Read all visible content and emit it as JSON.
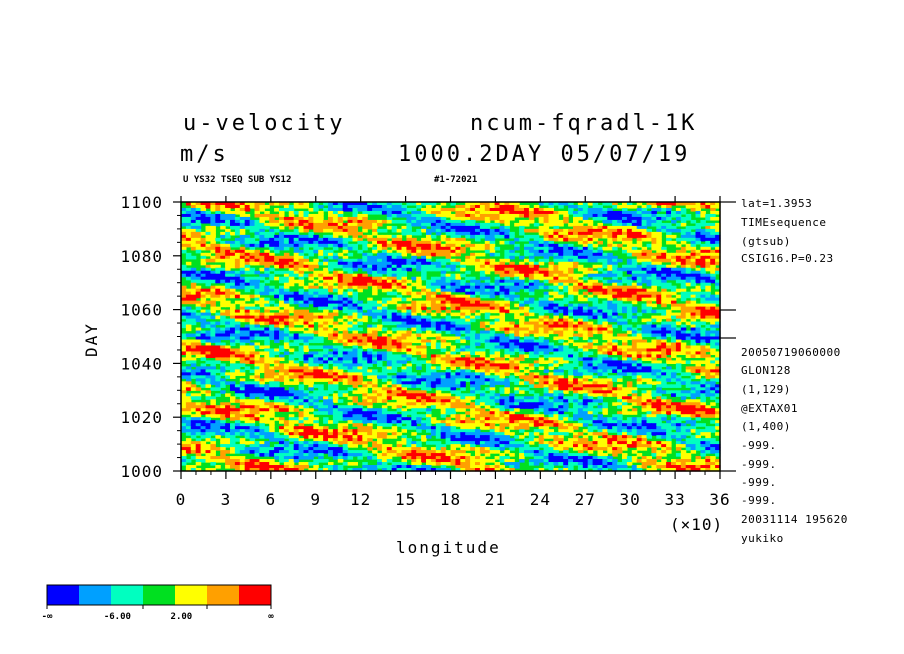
{
  "header": {
    "variable": "u-velocity",
    "run": "ncum-fqradl-1K",
    "units": "m/s",
    "time": "1000.2DAY 05/07/19",
    "subtitle_left": "U YS32 TSEQ SUB YS12",
    "subtitle_right": "#1-72021"
  },
  "side_info": {
    "top": [
      "lat=1.3953",
      "TIMEsequence",
      "(gtsub)",
      "CSIG16.P=0.23"
    ],
    "bottom": [
      "20050719060000",
      "GLON128",
      "(1,129)",
      "@EXTAX01",
      "(1,400)",
      "-999.",
      "-999.",
      "-999.",
      "-999.",
      "20031114 195620",
      "yukiko"
    ]
  },
  "colorbar": {
    "colors": [
      "#0000ff",
      "#00a0ff",
      "#00ffc0",
      "#00e020",
      "#ffff00",
      "#ffa000",
      "#ff0000"
    ],
    "labels": [
      "-∞",
      "-6.00",
      "2.00",
      "∞"
    ]
  },
  "chart_data": {
    "type": "heatmap",
    "xlabel": "longitude",
    "ylabel": "DAY",
    "x_multiplier": "(×10)",
    "xlim": [
      0,
      36
    ],
    "ylim": [
      1000,
      1100
    ],
    "x_ticks": [
      "0",
      "3",
      "6",
      "9",
      "12",
      "15",
      "18",
      "21",
      "24",
      "27",
      "30",
      "33",
      "36"
    ],
    "y_ticks": [
      "1000",
      "1020",
      "1040",
      "1060",
      "1080",
      "1100"
    ],
    "x_tick_values": [
      0,
      3,
      6,
      9,
      12,
      15,
      18,
      21,
      24,
      27,
      30,
      33,
      36
    ],
    "y_tick_values": [
      1000,
      1020,
      1040,
      1060,
      1080,
      1100
    ]
  }
}
